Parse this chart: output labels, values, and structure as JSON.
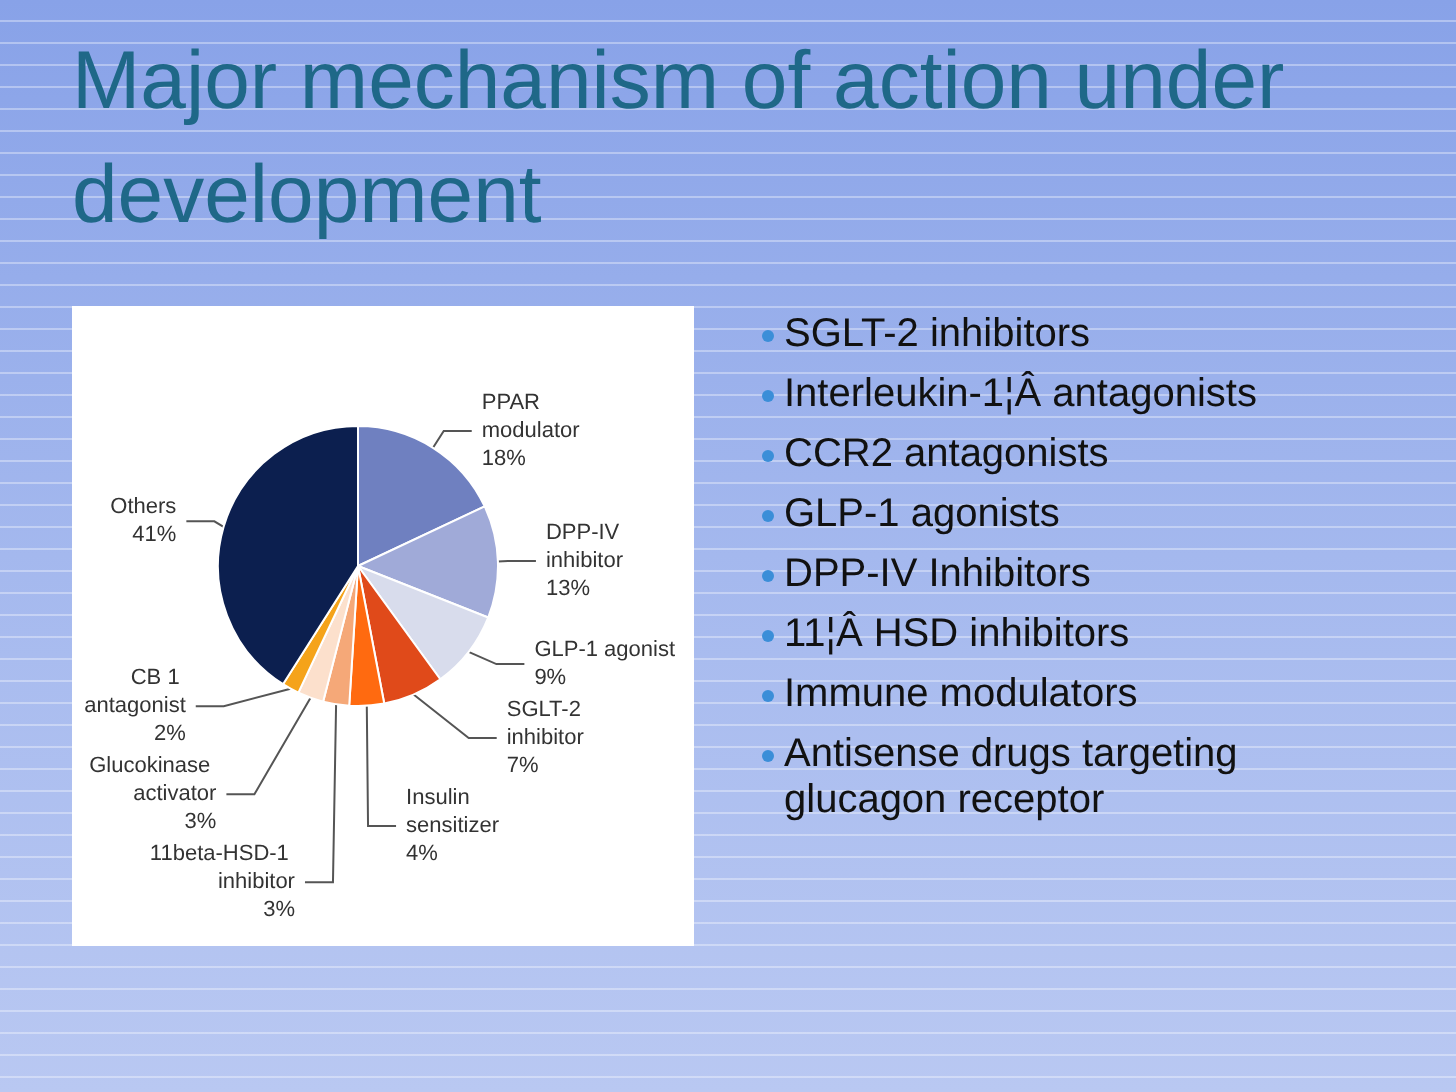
{
  "chart_data": {
    "type": "pie",
    "title": "Major mechanism of action under development",
    "categories": [
      "PPAR modulator",
      "DPP-IV inhibitor",
      "GLP-1 agonist",
      "SGLT-2 inhibitor",
      "Insulin sensitizer",
      "11beta-HSD-1 inhibitor",
      "Glucokinase activator",
      "CB 1 antagonist",
      "Others"
    ],
    "values": [
      18,
      13,
      9,
      7,
      4,
      3,
      3,
      2,
      41
    ],
    "value_labels": [
      "18%",
      "13%",
      "9%",
      "7%",
      "4%",
      "3%",
      "3%",
      "2%",
      "41%"
    ],
    "colors": [
      "#6f80c0",
      "#a0aad8",
      "#d8dcec",
      "#e04a1a",
      "#ff6a10",
      "#f5a878",
      "#fce0cc",
      "#f5a31a",
      "#0c1f4f"
    ],
    "annotations": [
      "SGLT-2 inhibitors",
      "Interleukin-1¦Â antagonists",
      "CCR2 antagonists",
      "GLP-1 agonists",
      "DPP-IV Inhibitors",
      "11¦Â HSD inhibitors",
      "Immune modulators",
      "Antisense drugs targeting glucagon receptor"
    ]
  }
}
